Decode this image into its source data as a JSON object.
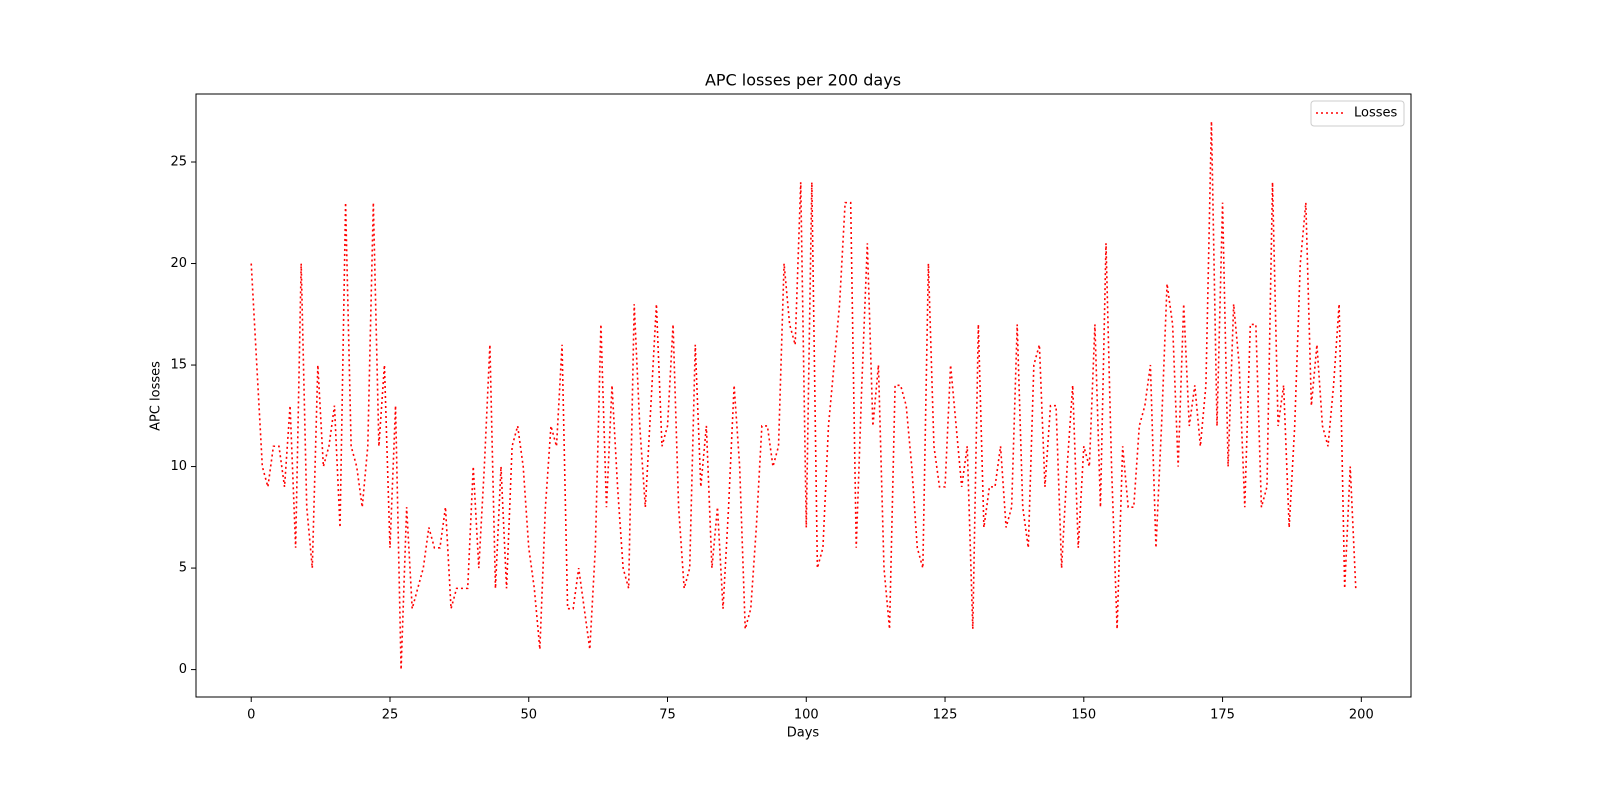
{
  "chart_data": {
    "type": "line",
    "title": "APC losses per 200 days",
    "xlabel": "Days",
    "ylabel": "APC losses",
    "x": [
      0,
      1,
      2,
      3,
      4,
      5,
      6,
      7,
      8,
      9,
      10,
      11,
      12,
      13,
      14,
      15,
      16,
      17,
      18,
      19,
      20,
      21,
      22,
      23,
      24,
      25,
      26,
      27,
      28,
      29,
      30,
      31,
      32,
      33,
      34,
      35,
      36,
      37,
      38,
      39,
      40,
      41,
      42,
      43,
      44,
      45,
      46,
      47,
      48,
      49,
      50,
      51,
      52,
      53,
      54,
      55,
      56,
      57,
      58,
      59,
      60,
      61,
      62,
      63,
      64,
      65,
      66,
      67,
      68,
      69,
      70,
      71,
      72,
      73,
      74,
      75,
      76,
      77,
      78,
      79,
      80,
      81,
      82,
      83,
      84,
      85,
      86,
      87,
      88,
      89,
      90,
      91,
      92,
      93,
      94,
      95,
      96,
      97,
      98,
      99,
      100,
      101,
      102,
      103,
      104,
      105,
      106,
      107,
      108,
      109,
      110,
      111,
      112,
      113,
      114,
      115,
      116,
      117,
      118,
      119,
      120,
      121,
      122,
      123,
      124,
      125,
      126,
      127,
      128,
      129,
      130,
      131,
      132,
      133,
      134,
      135,
      136,
      137,
      138,
      139,
      140,
      141,
      142,
      143,
      144,
      145,
      146,
      147,
      148,
      149,
      150,
      151,
      152,
      153,
      154,
      155,
      156,
      157,
      158,
      159,
      160,
      161,
      162,
      163,
      164,
      165,
      166,
      167,
      168,
      169,
      170,
      171,
      172,
      173,
      174,
      175,
      176,
      177,
      178,
      179,
      180,
      181,
      182,
      183,
      184,
      185,
      186,
      187,
      188,
      189,
      190,
      191,
      192,
      193,
      194,
      195,
      196,
      197,
      198,
      199
    ],
    "series": [
      {
        "name": "Losses",
        "color": "#ff0000",
        "linestyle": "dotted",
        "values": [
          20,
          15,
          10,
          9,
          11,
          11,
          9,
          13,
          6,
          20,
          8,
          5,
          15,
          10,
          11,
          13,
          7,
          23,
          11,
          10,
          8,
          11,
          23,
          11,
          15,
          6,
          13,
          0,
          8,
          3,
          4,
          5,
          7,
          6,
          6,
          8,
          3,
          4,
          4,
          4,
          10,
          5,
          10,
          16,
          4,
          10,
          4,
          11,
          12,
          10,
          6,
          4,
          1,
          8,
          12,
          11,
          16,
          3,
          3,
          5,
          3,
          1,
          6,
          17,
          8,
          14,
          9,
          5,
          4,
          18,
          12,
          8,
          13,
          18,
          11,
          12,
          17,
          8,
          4,
          5,
          16,
          9,
          12,
          5,
          8,
          3,
          8,
          14,
          10,
          2,
          3,
          7,
          12,
          12,
          10,
          11,
          20,
          17,
          16,
          24,
          7,
          24,
          5,
          6,
          12,
          15,
          18,
          23,
          23,
          6,
          14,
          21,
          12,
          15,
          5,
          2,
          14,
          14,
          13,
          10,
          6,
          5,
          20,
          11,
          9,
          9,
          15,
          12,
          9,
          11,
          2,
          17,
          7,
          9,
          9,
          11,
          7,
          8,
          17,
          8,
          6,
          15,
          16,
          9,
          13,
          13,
          5,
          10,
          14,
          6,
          11,
          10,
          17,
          8,
          21,
          10,
          2,
          11,
          8,
          8,
          12,
          13,
          15,
          6,
          12,
          19,
          17,
          10,
          18,
          12,
          14,
          11,
          14,
          27,
          12,
          23,
          10,
          18,
          15,
          8,
          17,
          17,
          8,
          9,
          24,
          12,
          14,
          7,
          12,
          20,
          23,
          13,
          16,
          12,
          11,
          14,
          18,
          4,
          10,
          4
        ]
      }
    ],
    "xlim": [
      -9.95,
      208.95
    ],
    "ylim": [
      -1.35,
      28.35
    ],
    "xticks": [
      0,
      25,
      50,
      75,
      100,
      125,
      150,
      175,
      200
    ],
    "yticks": [
      0,
      5,
      10,
      15,
      20,
      25
    ],
    "legend": "upper right"
  }
}
